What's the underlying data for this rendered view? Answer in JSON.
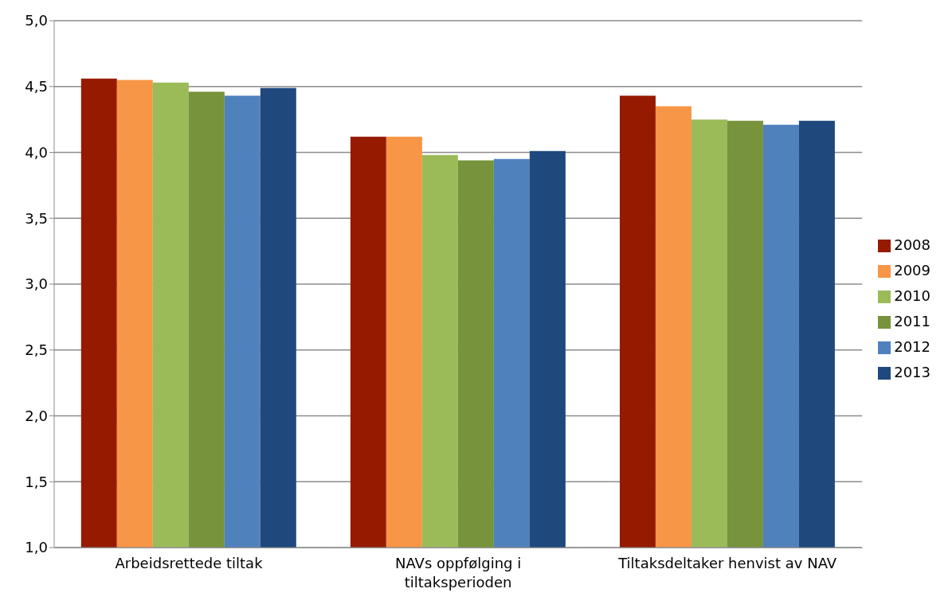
{
  "chart_data": {
    "type": "bar",
    "categories": [
      "Arbeidsrettede tiltak",
      "NAVs oppfølging i tiltaksperioden",
      "Tiltaksdeltaker henvist av NAV"
    ],
    "series": [
      {
        "name": "2008",
        "color": "#961a00",
        "values": [
          4.56,
          4.12,
          4.43
        ]
      },
      {
        "name": "2009",
        "color": "#f79646",
        "values": [
          4.55,
          4.12,
          4.35
        ]
      },
      {
        "name": "2010",
        "color": "#9bbb59",
        "values": [
          4.53,
          3.98,
          4.25
        ]
      },
      {
        "name": "2011",
        "color": "#77933c",
        "values": [
          4.46,
          3.94,
          4.24
        ]
      },
      {
        "name": "2012",
        "color": "#4f81bd",
        "values": [
          4.43,
          3.95,
          4.21
        ]
      },
      {
        "name": "2013",
        "color": "#1f497d",
        "values": [
          4.49,
          4.01,
          4.24
        ]
      }
    ],
    "ylim": [
      1,
      5
    ],
    "yticks": [
      {
        "value": 1,
        "label": "1,0"
      },
      {
        "value": 1.5,
        "label": "1,5"
      },
      {
        "value": 2,
        "label": "2,0"
      },
      {
        "value": 2.5,
        "label": "2,5"
      },
      {
        "value": 3,
        "label": "3,0"
      },
      {
        "value": 3.5,
        "label": "3,5"
      },
      {
        "value": 4,
        "label": "4,0"
      },
      {
        "value": 4.5,
        "label": "4,5"
      },
      {
        "value": 5,
        "label": "5,0"
      }
    ],
    "grid": "y",
    "legend": "right"
  }
}
